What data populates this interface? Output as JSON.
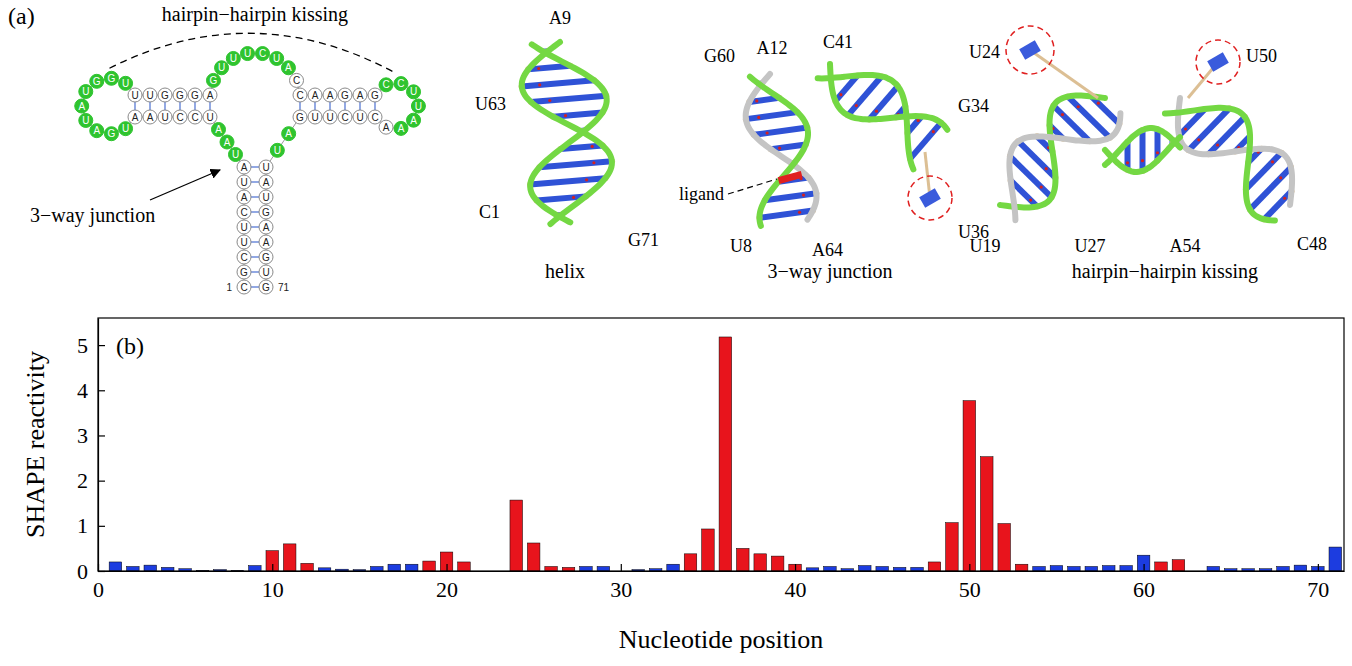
{
  "chart_data": {
    "type": "bar",
    "panel_label": "(b)",
    "x_label": "Nucleotide position",
    "y_label": "SHAPE reactivity",
    "x": [
      1,
      2,
      3,
      4,
      5,
      6,
      7,
      8,
      9,
      10,
      11,
      12,
      13,
      14,
      15,
      16,
      17,
      18,
      19,
      20,
      21,
      22,
      23,
      24,
      25,
      26,
      27,
      28,
      29,
      30,
      31,
      32,
      33,
      34,
      35,
      36,
      37,
      38,
      39,
      40,
      41,
      42,
      43,
      44,
      45,
      46,
      47,
      48,
      49,
      50,
      51,
      52,
      53,
      54,
      55,
      56,
      57,
      58,
      59,
      60,
      61,
      62,
      63,
      64,
      65,
      66,
      67,
      68,
      69,
      70,
      71
    ],
    "values": [
      0.2,
      0.1,
      0.13,
      0.08,
      0.05,
      0.01,
      0.03,
      0.01,
      0.12,
      0.45,
      0.6,
      0.17,
      0.07,
      0.04,
      0.03,
      0.1,
      0.15,
      0.15,
      0.22,
      0.42,
      0.2,
      0,
      0,
      1.57,
      0.62,
      0.1,
      0.08,
      0.1,
      0.1,
      0,
      0.03,
      0.05,
      0.15,
      0.38,
      0.93,
      5.18,
      0.5,
      0.38,
      0.33,
      0.15,
      0.07,
      0.1,
      0.05,
      0.12,
      0.1,
      0.08,
      0.08,
      0.2,
      1.07,
      3.77,
      2.53,
      1.05,
      0.15,
      0.1,
      0.12,
      0.1,
      0.1,
      0.12,
      0.12,
      0.35,
      0.2,
      0.25,
      0,
      0.1,
      0.05,
      0.05,
      0.05,
      0.1,
      0.13,
      0.1,
      0.53
    ],
    "colors": [
      "#1c3ce0",
      "#1c3ce0",
      "#1c3ce0",
      "#1c3ce0",
      "#1c3ce0",
      "#1c3ce0",
      "#1c3ce0",
      "#1c3ce0",
      "#1c3ce0",
      "#e8141c",
      "#e8141c",
      "#e8141c",
      "#1c3ce0",
      "#1c3ce0",
      "#1c3ce0",
      "#1c3ce0",
      "#1c3ce0",
      "#1c3ce0",
      "#e8141c",
      "#e8141c",
      "#e8141c",
      "#e8141c",
      "#e8141c",
      "#e8141c",
      "#e8141c",
      "#e8141c",
      "#e8141c",
      "#1c3ce0",
      "#1c3ce0",
      "#1c3ce0",
      "#1c3ce0",
      "#1c3ce0",
      "#1c3ce0",
      "#e8141c",
      "#e8141c",
      "#e8141c",
      "#e8141c",
      "#e8141c",
      "#e8141c",
      "#e8141c",
      "#1c3ce0",
      "#1c3ce0",
      "#1c3ce0",
      "#1c3ce0",
      "#1c3ce0",
      "#1c3ce0",
      "#1c3ce0",
      "#e8141c",
      "#e8141c",
      "#e8141c",
      "#e8141c",
      "#e8141c",
      "#e8141c",
      "#1c3ce0",
      "#1c3ce0",
      "#1c3ce0",
      "#1c3ce0",
      "#1c3ce0",
      "#1c3ce0",
      "#1c3ce0",
      "#e8141c",
      "#e8141c",
      "#1c3ce0",
      "#1c3ce0",
      "#1c3ce0",
      "#1c3ce0",
      "#1c3ce0",
      "#1c3ce0",
      "#1c3ce0",
      "#1c3ce0",
      "#1c3ce0"
    ],
    "xlim": [
      0,
      71.5
    ],
    "ylim": [
      0,
      5.6
    ],
    "xticks": [
      0,
      10,
      20,
      30,
      40,
      50,
      60,
      70
    ],
    "yticks": [
      0,
      1,
      2,
      3,
      4,
      5
    ]
  },
  "diagram": {
    "panel_label": "(a)",
    "kissing_label": "hairpin−hairpin kissing",
    "junction_label": "3−way junction",
    "sequence": [
      "C",
      "G",
      "C",
      "U",
      "U",
      "C",
      "A",
      "U",
      "A",
      "U",
      "A",
      "A",
      "U",
      "C",
      "C",
      "U",
      "A",
      "A",
      "U",
      "G",
      "A",
      "U",
      "A",
      "U",
      "G",
      "G",
      "U",
      "U",
      "U",
      "G",
      "G",
      "G",
      "A",
      "G",
      "U",
      "U",
      "U",
      "C",
      "U",
      "A",
      "C",
      "C",
      "A",
      "A",
      "G",
      "A",
      "G",
      "C",
      "C",
      "U",
      "U",
      "A",
      "A",
      "A",
      "C",
      "U",
      "C",
      "U",
      "U",
      "G",
      "A",
      "U",
      "U",
      "A",
      "U",
      "G",
      "A",
      "A",
      "G",
      "U",
      "G"
    ],
    "stems": [
      [
        [
          1,
          71
        ],
        [
          2,
          70
        ],
        [
          3,
          69
        ],
        [
          4,
          68
        ],
        [
          5,
          67
        ],
        [
          6,
          66
        ],
        [
          7,
          65
        ],
        [
          8,
          64
        ],
        [
          9,
          63
        ]
      ],
      [
        [
          13,
          33
        ],
        [
          14,
          32
        ],
        [
          15,
          31
        ],
        [
          16,
          30
        ],
        [
          17,
          29
        ],
        [
          18,
          28
        ]
      ],
      [
        [
          42,
          60
        ],
        [
          43,
          59
        ],
        [
          44,
          58
        ],
        [
          45,
          57
        ],
        [
          46,
          56
        ],
        [
          47,
          55
        ]
      ]
    ],
    "highlighted": [
      10,
      11,
      12,
      19,
      20,
      21,
      22,
      23,
      24,
      25,
      26,
      27,
      34,
      35,
      36,
      37,
      38,
      39,
      40,
      48,
      49,
      50,
      51,
      52,
      53,
      61,
      62
    ],
    "numbering": [
      1,
      71
    ]
  },
  "structures": [
    {
      "title": "helix",
      "labels": [
        "A9",
        "U63",
        "C1",
        "G71"
      ]
    },
    {
      "title": "3−way junction",
      "labels": [
        "G60",
        "A12",
        "C41",
        "G34",
        "U36",
        "U8",
        "A64"
      ],
      "ligand": "ligand"
    },
    {
      "title": "hairpin−hairpin kissing",
      "labels": [
        "U24",
        "U50",
        "U19",
        "U27",
        "A54",
        "C48"
      ]
    }
  ]
}
